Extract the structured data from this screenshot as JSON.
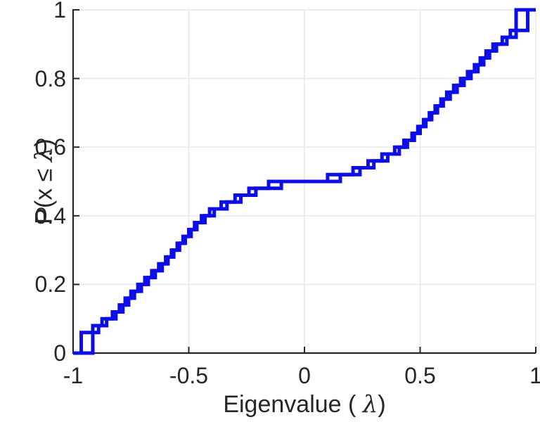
{
  "figure": {
    "background": "#ffffff",
    "axis_color": "#262626",
    "grid_color": "#e7e7e7",
    "tick_length": 9,
    "line_color": "#0d0de8",
    "line_width": 5
  },
  "chart_data": {
    "type": "line",
    "subtype": "empirical-cdf-stairs",
    "title": "",
    "xlabel": "Eigenvalue ( λ)",
    "ylabel": "P(x ≤ λ)",
    "xlim": [
      -1,
      1
    ],
    "ylim": [
      0,
      1
    ],
    "grid": true,
    "legend": false,
    "x_ticks": {
      "values": [
        -1,
        -0.5,
        0,
        0.5,
        1
      ],
      "labels": [
        "-1",
        "-0.5",
        "0",
        "0.5",
        "1"
      ]
    },
    "y_ticks": {
      "values": [
        0,
        0.2,
        0.4,
        0.6,
        0.8,
        1
      ],
      "labels": [
        "0",
        "0.2",
        "0.4",
        "0.6",
        "0.8",
        "1"
      ]
    },
    "series": [
      {
        "name": "eigenvalue-ecdf-1",
        "step_height": 0.02,
        "start": [
          -1,
          0
        ],
        "end": [
          1,
          1
        ],
        "eigenvalues": [
          -0.965,
          -0.965,
          -0.965,
          -0.89,
          -0.875,
          -0.83,
          -0.8,
          -0.775,
          -0.75,
          -0.72,
          -0.69,
          -0.66,
          -0.63,
          -0.6,
          -0.575,
          -0.55,
          -0.525,
          -0.5,
          -0.475,
          -0.445,
          -0.41,
          -0.36,
          -0.3,
          -0.24,
          -0.155,
          0.1,
          0.21,
          0.275,
          0.335,
          0.39,
          0.43,
          0.465,
          0.49,
          0.515,
          0.54,
          0.565,
          0.59,
          0.615,
          0.645,
          0.675,
          0.705,
          0.735,
          0.76,
          0.785,
          0.815,
          0.855,
          0.915,
          0.915,
          0.915,
          0.915
        ]
      },
      {
        "name": "eigenvalue-ecdf-2",
        "step_height": 0.02,
        "start": [
          -1,
          0
        ],
        "end": [
          1,
          1
        ],
        "eigenvalues": [
          -0.915,
          -0.915,
          -0.915,
          -0.915,
          -0.855,
          -0.815,
          -0.785,
          -0.76,
          -0.735,
          -0.705,
          -0.675,
          -0.645,
          -0.615,
          -0.59,
          -0.565,
          -0.54,
          -0.515,
          -0.49,
          -0.465,
          -0.43,
          -0.39,
          -0.335,
          -0.275,
          -0.21,
          -0.1,
          0.155,
          0.24,
          0.3,
          0.36,
          0.41,
          0.445,
          0.475,
          0.5,
          0.525,
          0.55,
          0.575,
          0.6,
          0.63,
          0.66,
          0.69,
          0.72,
          0.75,
          0.775,
          0.8,
          0.83,
          0.875,
          0.89,
          0.965,
          0.965,
          0.965
        ]
      }
    ]
  }
}
